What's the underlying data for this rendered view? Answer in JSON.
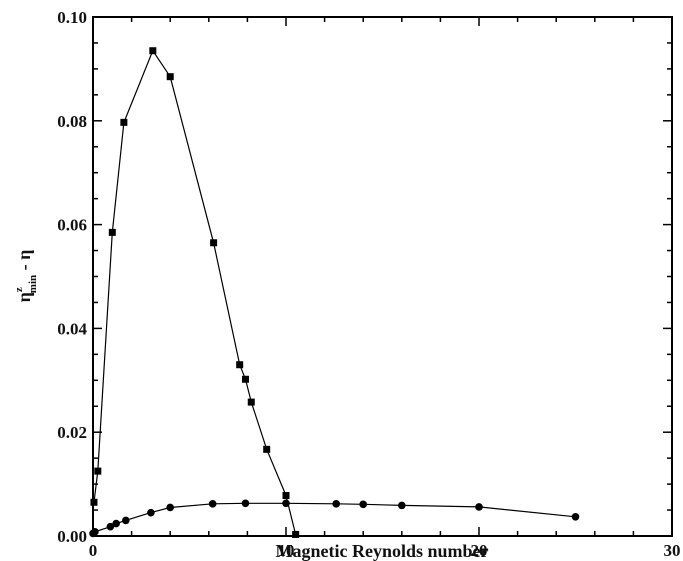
{
  "chart_data": {
    "type": "line",
    "title": "",
    "xlabel": "Magnetic Reynolds number",
    "ylabel": {
      "base": "η",
      "sup": "z",
      "sub": "min",
      "suffix": " - η"
    },
    "xlim": [
      0,
      30
    ],
    "ylim": [
      0,
      0.1
    ],
    "xticks": [
      0,
      10,
      20,
      30
    ],
    "yticks": [
      0.0,
      0.02,
      0.04,
      0.06,
      0.08,
      0.1
    ],
    "xtick_labels": [
      "0",
      "10",
      "20",
      "30"
    ],
    "ytick_labels": [
      "0.00",
      "0.02",
      "0.04",
      "0.06",
      "0.08",
      "0.10"
    ],
    "grid": false,
    "series": [
      {
        "marker": "square",
        "x": [
          0.05,
          0.25,
          1.0,
          1.6,
          3.1,
          4.0,
          6.25,
          7.6,
          7.9,
          8.2,
          9.0,
          10.0,
          10.5
        ],
        "y": [
          0.0065,
          0.0125,
          0.0585,
          0.0797,
          0.0935,
          0.0885,
          0.0565,
          0.033,
          0.0302,
          0.0258,
          0.0167,
          0.0078,
          0.0003
        ]
      },
      {
        "marker": "circle",
        "x": [
          0.0,
          0.1,
          0.9,
          1.2,
          1.7,
          3.0,
          4.0,
          6.2,
          7.9,
          10.0,
          12.6,
          14.0,
          16.0,
          20.0,
          25.0
        ],
        "y": [
          0.0005,
          0.0008,
          0.0018,
          0.0024,
          0.003,
          0.0045,
          0.0055,
          0.0062,
          0.0063,
          0.0063,
          0.0062,
          0.0061,
          0.0059,
          0.0056,
          0.0037
        ]
      }
    ]
  }
}
